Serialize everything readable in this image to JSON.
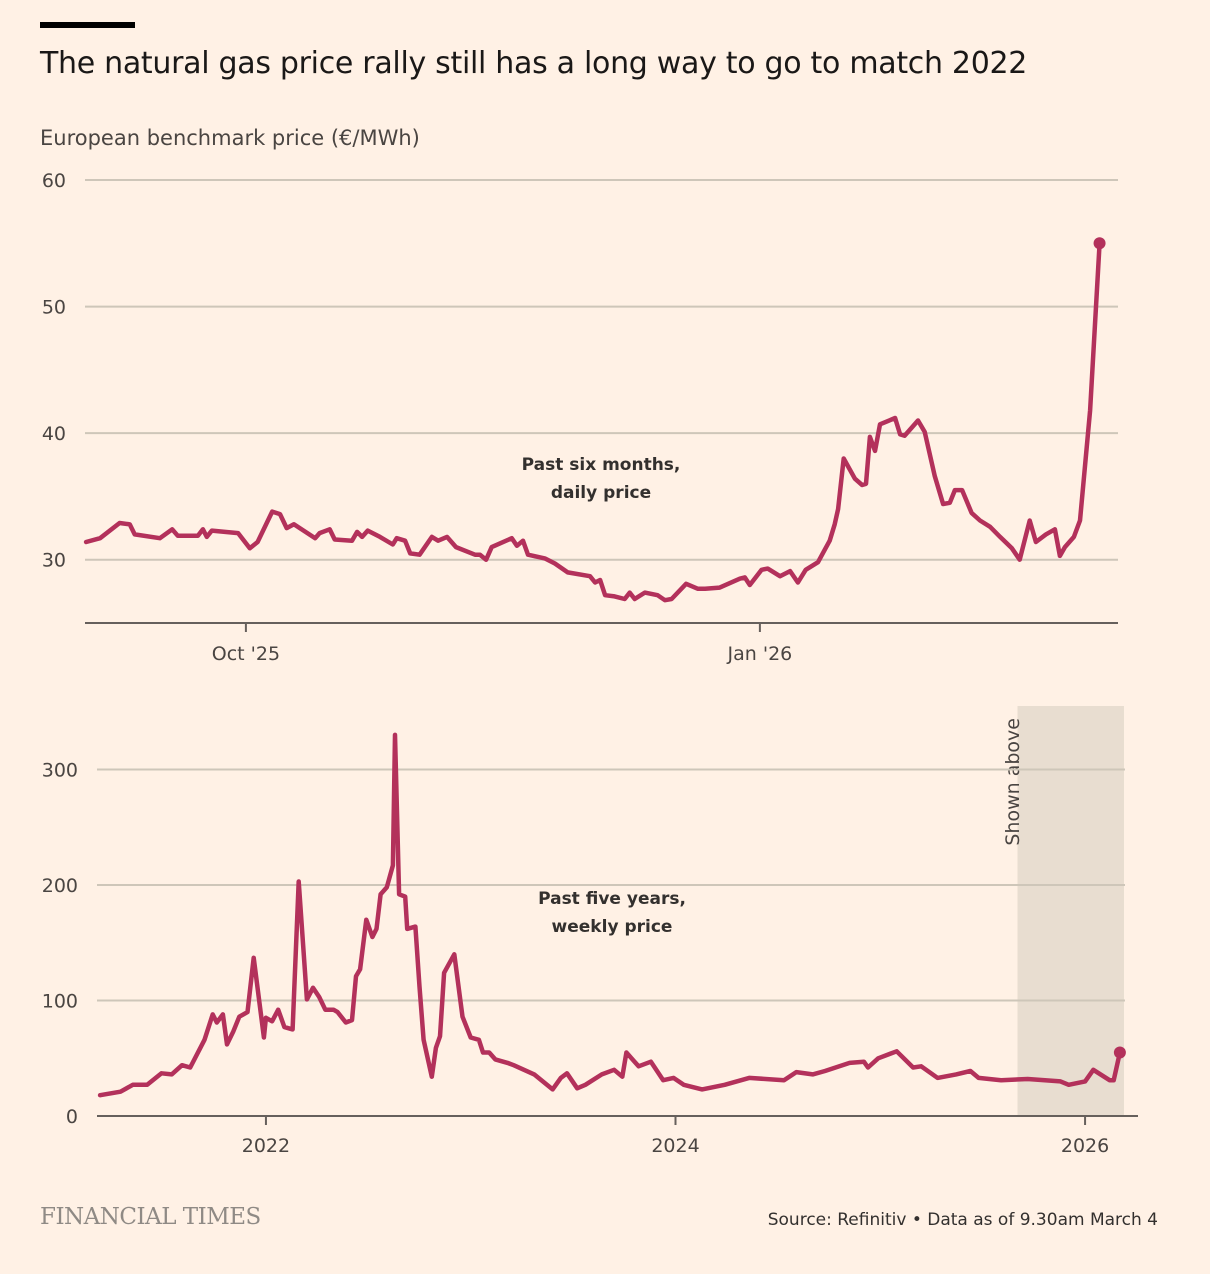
{
  "header": {
    "title": "The natural gas price rally still has a long way to go to match 2022",
    "subtitle": "European benchmark price (€/MWh)"
  },
  "footer": {
    "logo": "FINANCIAL TIMES",
    "source": "Source: Refinitiv • Data as of 9.30am March 4"
  },
  "colors": {
    "line": "#B3315B",
    "grid": "#CEC6B9",
    "axis": "#66605C",
    "shade": "#E8DDD0",
    "background": "#FFF1E5"
  },
  "chart_data": [
    {
      "type": "line",
      "title": "Past six months, daily price",
      "annotation": [
        "Past six months,",
        "daily price"
      ],
      "x_unit": "days since 1 Oct 2025",
      "xlim": [
        -28.8,
        156.1
      ],
      "ylim": [
        25,
        60
      ],
      "yticks": [
        30,
        40,
        50,
        60
      ],
      "ytick_labels": [
        "30",
        "40",
        "50",
        "60"
      ],
      "xticks": [
        0,
        92
      ],
      "xtick_labels": [
        "Oct '25",
        "Jan '26"
      ],
      "grid": true,
      "points": [
        [
          -28.6,
          31.4
        ],
        [
          -26.1,
          31.7
        ],
        [
          -22.6,
          32.9
        ],
        [
          -20.8,
          32.8
        ],
        [
          -19.9,
          32.0
        ],
        [
          -15.4,
          31.7
        ],
        [
          -13.2,
          32.4
        ],
        [
          -12.2,
          31.9
        ],
        [
          -8.6,
          31.9
        ],
        [
          -7.7,
          32.4
        ],
        [
          -7.0,
          31.8
        ],
        [
          -6.1,
          32.3
        ],
        [
          -1.4,
          32.1
        ],
        [
          0.7,
          30.9
        ],
        [
          2.1,
          31.4
        ],
        [
          4.7,
          33.8
        ],
        [
          6.1,
          33.6
        ],
        [
          7.3,
          32.5
        ],
        [
          8.6,
          32.8
        ],
        [
          12.4,
          31.7
        ],
        [
          13.2,
          32.1
        ],
        [
          15.0,
          32.4
        ],
        [
          15.9,
          31.6
        ],
        [
          19.0,
          31.5
        ],
        [
          19.9,
          32.2
        ],
        [
          20.8,
          31.8
        ],
        [
          21.8,
          32.3
        ],
        [
          24.0,
          31.8
        ],
        [
          26.3,
          31.2
        ],
        [
          27.0,
          31.7
        ],
        [
          28.5,
          31.5
        ],
        [
          29.4,
          30.5
        ],
        [
          31.1,
          30.4
        ],
        [
          33.3,
          31.8
        ],
        [
          34.4,
          31.5
        ],
        [
          36.0,
          31.8
        ],
        [
          37.6,
          31.0
        ],
        [
          41.0,
          30.4
        ],
        [
          41.9,
          30.4
        ],
        [
          43.0,
          30.0
        ],
        [
          44.0,
          31.0
        ],
        [
          47.6,
          31.7
        ],
        [
          48.5,
          31.1
        ],
        [
          49.6,
          31.5
        ],
        [
          50.5,
          30.4
        ],
        [
          53.5,
          30.1
        ],
        [
          55.3,
          29.7
        ],
        [
          57.6,
          29.0
        ],
        [
          61.6,
          28.7
        ],
        [
          62.5,
          28.2
        ],
        [
          63.4,
          28.4
        ],
        [
          64.3,
          27.2
        ],
        [
          66.0,
          27.1
        ],
        [
          67.8,
          26.9
        ],
        [
          68.7,
          27.4
        ],
        [
          69.6,
          26.9
        ],
        [
          71.4,
          27.4
        ],
        [
          73.7,
          27.2
        ],
        [
          75.0,
          26.8
        ],
        [
          76.2,
          26.9
        ],
        [
          78.8,
          28.1
        ],
        [
          80.9,
          27.7
        ],
        [
          82.2,
          27.7
        ],
        [
          84.8,
          27.8
        ],
        [
          88.4,
          28.5
        ],
        [
          89.3,
          28.6
        ],
        [
          90.2,
          28.0
        ],
        [
          92.3,
          29.2
        ],
        [
          93.4,
          29.3
        ],
        [
          95.6,
          28.7
        ],
        [
          97.4,
          29.1
        ],
        [
          98.8,
          28.2
        ],
        [
          100.2,
          29.2
        ],
        [
          102.4,
          29.8
        ],
        [
          103.5,
          30.7
        ],
        [
          104.5,
          31.5
        ],
        [
          105.4,
          32.8
        ],
        [
          106.0,
          34.0
        ],
        [
          107.0,
          38.0
        ],
        [
          109.0,
          36.4
        ],
        [
          110.3,
          35.9
        ],
        [
          111.0,
          36.0
        ],
        [
          111.7,
          39.7
        ],
        [
          112.6,
          38.6
        ],
        [
          113.5,
          40.7
        ],
        [
          116.2,
          41.2
        ],
        [
          117.1,
          39.9
        ],
        [
          117.9,
          39.8
        ],
        [
          120.3,
          41.0
        ],
        [
          121.5,
          40.1
        ],
        [
          123.3,
          36.6
        ],
        [
          124.8,
          34.4
        ],
        [
          126.0,
          34.5
        ],
        [
          126.9,
          35.5
        ],
        [
          128.2,
          35.5
        ],
        [
          129.9,
          33.7
        ],
        [
          131.4,
          33.1
        ],
        [
          133.2,
          32.6
        ],
        [
          135.0,
          31.8
        ],
        [
          137.1,
          30.9
        ],
        [
          138.5,
          30.0
        ],
        [
          140.3,
          33.1
        ],
        [
          141.4,
          31.4
        ],
        [
          143.2,
          32.0
        ],
        [
          144.8,
          32.4
        ],
        [
          145.7,
          30.3
        ],
        [
          146.6,
          31.0
        ],
        [
          148.2,
          31.8
        ],
        [
          149.3,
          33.1
        ],
        [
          151.1,
          41.8
        ],
        [
          152.8,
          55.0
        ]
      ]
    },
    {
      "type": "line",
      "title": "Past five years, weekly price",
      "annotation": [
        "Past five years,",
        "weekly price"
      ],
      "shaded_label": "Shown above",
      "shaded_range": [
        2025.67,
        2026.19
      ],
      "x_unit": "year",
      "xlim": [
        2021.175,
        2026.195
      ],
      "ylim": [
        0,
        355
      ],
      "yticks": [
        0,
        100,
        200,
        300
      ],
      "ytick_labels": [
        "0",
        "100",
        "200",
        "300"
      ],
      "xticks": [
        2022,
        2024,
        2026
      ],
      "xtick_labels": [
        "2022",
        "2024",
        "2026"
      ],
      "grid": true,
      "points": [
        [
          2021.19,
          18
        ],
        [
          2021.29,
          21
        ],
        [
          2021.35,
          27
        ],
        [
          2021.42,
          27
        ],
        [
          2021.49,
          37
        ],
        [
          2021.54,
          36
        ],
        [
          2021.59,
          44
        ],
        [
          2021.63,
          42
        ],
        [
          2021.7,
          66
        ],
        [
          2021.74,
          88
        ],
        [
          2021.76,
          81
        ],
        [
          2021.79,
          88
        ],
        [
          2021.81,
          62
        ],
        [
          2021.84,
          73
        ],
        [
          2021.87,
          86
        ],
        [
          2021.91,
          90
        ],
        [
          2021.94,
          137
        ],
        [
          2021.99,
          68
        ],
        [
          2022.0,
          85
        ],
        [
          2022.03,
          82
        ],
        [
          2022.06,
          92
        ],
        [
          2022.09,
          77
        ],
        [
          2022.13,
          75
        ],
        [
          2022.16,
          203
        ],
        [
          2022.2,
          101
        ],
        [
          2022.23,
          111
        ],
        [
          2022.26,
          103
        ],
        [
          2022.29,
          92
        ],
        [
          2022.33,
          92
        ],
        [
          2022.35,
          90
        ],
        [
          2022.39,
          81
        ],
        [
          2022.42,
          83
        ],
        [
          2022.44,
          121
        ],
        [
          2022.46,
          127
        ],
        [
          2022.49,
          170
        ],
        [
          2022.52,
          155
        ],
        [
          2022.54,
          162
        ],
        [
          2022.56,
          192
        ],
        [
          2022.59,
          198
        ],
        [
          2022.62,
          217
        ],
        [
          2022.63,
          330
        ],
        [
          2022.65,
          192
        ],
        [
          2022.68,
          190
        ],
        [
          2022.69,
          162
        ],
        [
          2022.73,
          164
        ],
        [
          2022.75,
          112
        ],
        [
          2022.77,
          66
        ],
        [
          2022.81,
          34
        ],
        [
          2022.83,
          59
        ],
        [
          2022.85,
          69
        ],
        [
          2022.87,
          124
        ],
        [
          2022.92,
          140
        ],
        [
          2022.96,
          86
        ],
        [
          2023.0,
          68
        ],
        [
          2023.04,
          66
        ],
        [
          2023.06,
          55
        ],
        [
          2023.09,
          55
        ],
        [
          2023.12,
          49
        ],
        [
          2023.18,
          46
        ],
        [
          2023.21,
          44
        ],
        [
          2023.31,
          36
        ],
        [
          2023.4,
          23
        ],
        [
          2023.44,
          33
        ],
        [
          2023.47,
          37
        ],
        [
          2023.52,
          24
        ],
        [
          2023.56,
          27
        ],
        [
          2023.64,
          36
        ],
        [
          2023.7,
          40
        ],
        [
          2023.74,
          34
        ],
        [
          2023.76,
          55
        ],
        [
          2023.82,
          43
        ],
        [
          2023.88,
          47
        ],
        [
          2023.94,
          31
        ],
        [
          2023.99,
          33
        ],
        [
          2024.04,
          27
        ],
        [
          2024.13,
          23
        ],
        [
          2024.24,
          27
        ],
        [
          2024.36,
          33
        ],
        [
          2024.53,
          31
        ],
        [
          2024.59,
          38
        ],
        [
          2024.67,
          36
        ],
        [
          2024.73,
          39
        ],
        [
          2024.85,
          46
        ],
        [
          2024.92,
          47
        ],
        [
          2024.94,
          42
        ],
        [
          2024.99,
          50
        ],
        [
          2025.08,
          56
        ],
        [
          2025.16,
          42
        ],
        [
          2025.2,
          43
        ],
        [
          2025.28,
          33
        ],
        [
          2025.37,
          36
        ],
        [
          2025.44,
          39
        ],
        [
          2025.48,
          33
        ],
        [
          2025.59,
          31
        ],
        [
          2025.72,
          32
        ],
        [
          2025.88,
          30
        ],
        [
          2025.92,
          27
        ],
        [
          2026.0,
          30
        ],
        [
          2026.04,
          40
        ],
        [
          2026.12,
          31
        ],
        [
          2026.14,
          31
        ],
        [
          2026.17,
          55
        ]
      ]
    }
  ]
}
